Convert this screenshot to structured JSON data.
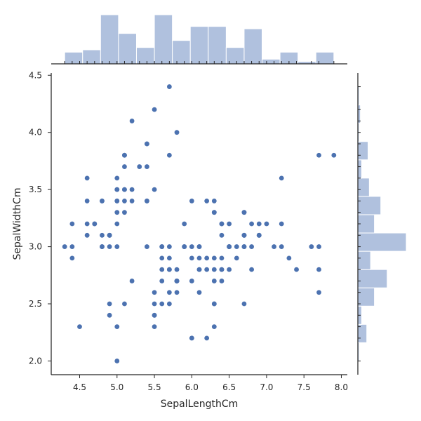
{
  "chart_data": {
    "type": "scatter",
    "title": "",
    "xlabel": "SepalLengthCm",
    "ylabel": "SepalWidthCm",
    "xlim": [
      4.12,
      8.08
    ],
    "ylim": [
      1.88,
      4.52
    ],
    "x_ticks": [
      "4.5",
      "5.0",
      "5.5",
      "6.0",
      "6.5",
      "7.0",
      "7.5",
      "8.0"
    ],
    "y_ticks": [
      "2.0",
      "2.5",
      "3.0",
      "3.5",
      "4.0",
      "4.5"
    ],
    "grid": false,
    "colors": {
      "points": "#4c72b0",
      "hist_fill": "#b0c1de",
      "hist_edge": "#ffffff",
      "axis": "#262626"
    },
    "points": [
      [
        5.1,
        3.5
      ],
      [
        4.9,
        3.0
      ],
      [
        4.7,
        3.2
      ],
      [
        4.6,
        3.1
      ],
      [
        5.0,
        3.6
      ],
      [
        5.4,
        3.9
      ],
      [
        4.6,
        3.4
      ],
      [
        5.0,
        3.4
      ],
      [
        4.4,
        2.9
      ],
      [
        4.9,
        3.1
      ],
      [
        5.4,
        3.7
      ],
      [
        4.8,
        3.4
      ],
      [
        4.8,
        3.0
      ],
      [
        4.3,
        3.0
      ],
      [
        5.8,
        4.0
      ],
      [
        5.7,
        4.4
      ],
      [
        5.4,
        3.9
      ],
      [
        5.1,
        3.5
      ],
      [
        5.7,
        3.8
      ],
      [
        5.1,
        3.8
      ],
      [
        5.4,
        3.4
      ],
      [
        5.1,
        3.7
      ],
      [
        4.6,
        3.6
      ],
      [
        5.1,
        3.3
      ],
      [
        4.8,
        3.4
      ],
      [
        5.0,
        3.0
      ],
      [
        5.0,
        3.4
      ],
      [
        5.2,
        3.5
      ],
      [
        5.2,
        3.4
      ],
      [
        4.7,
        3.2
      ],
      [
        4.8,
        3.1
      ],
      [
        5.4,
        3.4
      ],
      [
        5.2,
        4.1
      ],
      [
        5.5,
        4.2
      ],
      [
        4.9,
        3.1
      ],
      [
        5.0,
        3.2
      ],
      [
        5.5,
        3.5
      ],
      [
        4.9,
        3.1
      ],
      [
        4.4,
        3.0
      ],
      [
        5.1,
        3.4
      ],
      [
        5.0,
        3.5
      ],
      [
        4.5,
        2.3
      ],
      [
        4.4,
        3.2
      ],
      [
        5.0,
        3.5
      ],
      [
        5.1,
        3.8
      ],
      [
        4.8,
        3.0
      ],
      [
        5.1,
        3.8
      ],
      [
        4.6,
        3.2
      ],
      [
        5.3,
        3.7
      ],
      [
        5.0,
        3.3
      ],
      [
        7.0,
        3.2
      ],
      [
        6.4,
        3.2
      ],
      [
        6.9,
        3.1
      ],
      [
        5.5,
        2.3
      ],
      [
        6.5,
        2.8
      ],
      [
        5.7,
        2.8
      ],
      [
        6.3,
        3.3
      ],
      [
        4.9,
        2.4
      ],
      [
        6.6,
        2.9
      ],
      [
        5.2,
        2.7
      ],
      [
        5.0,
        2.0
      ],
      [
        5.9,
        3.0
      ],
      [
        6.0,
        2.2
      ],
      [
        6.1,
        2.9
      ],
      [
        5.6,
        2.9
      ],
      [
        6.7,
        3.1
      ],
      [
        5.6,
        3.0
      ],
      [
        5.8,
        2.7
      ],
      [
        6.2,
        2.2
      ],
      [
        5.6,
        2.5
      ],
      [
        5.9,
        3.2
      ],
      [
        6.1,
        2.8
      ],
      [
        6.3,
        2.5
      ],
      [
        6.1,
        2.8
      ],
      [
        6.4,
        2.9
      ],
      [
        6.6,
        3.0
      ],
      [
        6.8,
        2.8
      ],
      [
        6.7,
        3.0
      ],
      [
        6.0,
        2.9
      ],
      [
        5.7,
        2.6
      ],
      [
        5.5,
        2.4
      ],
      [
        5.5,
        2.4
      ],
      [
        5.8,
        2.7
      ],
      [
        6.0,
        2.7
      ],
      [
        5.4,
        3.0
      ],
      [
        6.0,
        3.4
      ],
      [
        6.7,
        3.1
      ],
      [
        6.3,
        2.3
      ],
      [
        5.6,
        3.0
      ],
      [
        5.5,
        2.5
      ],
      [
        5.5,
        2.6
      ],
      [
        6.1,
        3.0
      ],
      [
        5.8,
        2.6
      ],
      [
        5.0,
        2.3
      ],
      [
        5.6,
        2.7
      ],
      [
        5.7,
        3.0
      ],
      [
        5.7,
        2.9
      ],
      [
        6.2,
        2.9
      ],
      [
        5.1,
        2.5
      ],
      [
        5.7,
        2.8
      ],
      [
        6.3,
        3.3
      ],
      [
        5.8,
        2.7
      ],
      [
        7.1,
        3.0
      ],
      [
        6.3,
        2.9
      ],
      [
        6.5,
        3.0
      ],
      [
        7.6,
        3.0
      ],
      [
        4.9,
        2.5
      ],
      [
        7.3,
        2.9
      ],
      [
        6.7,
        2.5
      ],
      [
        7.2,
        3.6
      ],
      [
        6.5,
        3.2
      ],
      [
        6.4,
        2.7
      ],
      [
        6.8,
        3.0
      ],
      [
        5.7,
        2.5
      ],
      [
        5.8,
        2.8
      ],
      [
        6.4,
        3.2
      ],
      [
        6.5,
        3.0
      ],
      [
        7.7,
        3.8
      ],
      [
        7.7,
        2.6
      ],
      [
        6.0,
        2.2
      ],
      [
        6.9,
        3.2
      ],
      [
        5.6,
        2.8
      ],
      [
        7.7,
        2.8
      ],
      [
        6.3,
        2.7
      ],
      [
        6.7,
        3.3
      ],
      [
        7.2,
        3.2
      ],
      [
        6.2,
        2.8
      ],
      [
        6.1,
        3.0
      ],
      [
        6.4,
        2.8
      ],
      [
        7.2,
        3.0
      ],
      [
        7.4,
        2.8
      ],
      [
        7.9,
        3.8
      ],
      [
        6.4,
        2.8
      ],
      [
        6.3,
        2.8
      ],
      [
        6.1,
        2.6
      ],
      [
        7.7,
        3.0
      ],
      [
        6.3,
        3.4
      ],
      [
        6.4,
        3.1
      ],
      [
        6.0,
        3.0
      ],
      [
        6.9,
        3.1
      ],
      [
        6.7,
        3.1
      ],
      [
        6.9,
        3.1
      ],
      [
        5.8,
        2.7
      ],
      [
        6.8,
        3.2
      ],
      [
        6.7,
        3.3
      ],
      [
        6.7,
        3.0
      ],
      [
        6.3,
        2.5
      ],
      [
        6.5,
        3.0
      ],
      [
        6.2,
        3.4
      ],
      [
        5.9,
        3.0
      ]
    ]
  }
}
